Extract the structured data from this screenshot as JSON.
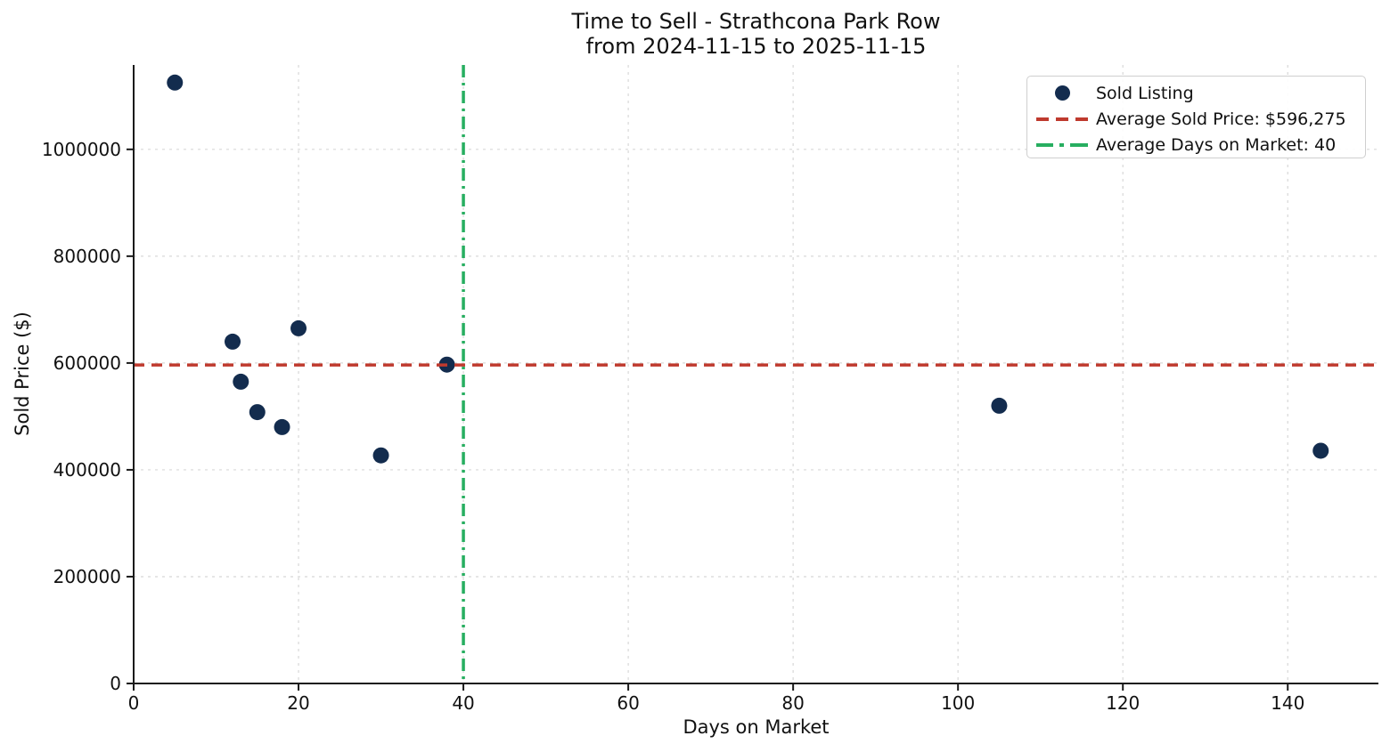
{
  "title": {
    "line1": "Time to Sell - Strathcona Park Row",
    "line2": "from 2024-11-15 to 2025-11-15"
  },
  "chart_data": {
    "type": "scatter",
    "title": "Time to Sell - Strathcona Park Row\nfrom 2024-11-15 to 2025-11-15",
    "xlabel": "Days on Market",
    "ylabel": "Sold Price ($)",
    "points": [
      {
        "days": 5,
        "price": 1125000
      },
      {
        "days": 12,
        "price": 640000
      },
      {
        "days": 13,
        "price": 565000
      },
      {
        "days": 15,
        "price": 508000
      },
      {
        "days": 18,
        "price": 480000
      },
      {
        "days": 20,
        "price": 665000
      },
      {
        "days": 30,
        "price": 427000
      },
      {
        "days": 38,
        "price": 597000
      },
      {
        "days": 105,
        "price": 520000
      },
      {
        "days": 144,
        "price": 435750
      }
    ],
    "average_sold_price": 596275,
    "average_days_on_market": 40,
    "x_ticks": [
      0,
      20,
      40,
      60,
      80,
      100,
      120,
      140
    ],
    "x_tick_labels": [
      "0",
      "20",
      "40",
      "60",
      "80",
      "100",
      "120",
      "140"
    ],
    "y_ticks": [
      0,
      200000,
      400000,
      600000,
      800000,
      1000000
    ],
    "y_tick_labels": [
      "0",
      "200000",
      "400000",
      "600000",
      "800000",
      "1000000"
    ],
    "xlim": [
      0,
      151
    ],
    "ylim": [
      0,
      1158000
    ],
    "grid": true,
    "legend_position": "upper right"
  },
  "legend": {
    "entries": [
      {
        "label": "Sold Listing",
        "marker": "dot"
      },
      {
        "label": "Average Sold Price: $596,275",
        "marker": "dashed-line"
      },
      {
        "label": "Average Days on Market: 40",
        "marker": "dashdot-line"
      }
    ]
  },
  "colors": {
    "point": "#132c4e",
    "average_price_line": "#bf3a2e",
    "average_days_line": "#27ae60",
    "grid": "#d8d8d8",
    "axis": "#1a1a1a",
    "text": "#111111",
    "legend_border": "#cfcfcf"
  }
}
